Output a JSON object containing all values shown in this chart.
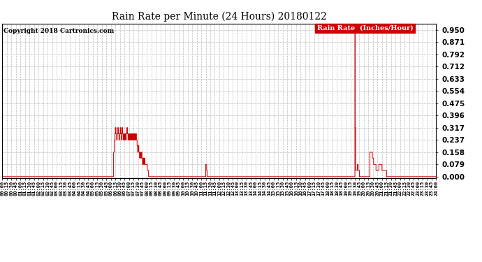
{
  "title": "Rain Rate per Minute (24 Hours) 20180122",
  "copyright": "Copyright 2018 Cartronics.com",
  "legend_label": "Rain Rate  (Inches/Hour)",
  "background_color": "#ffffff",
  "plot_bg_color": "#ffffff",
  "grid_color": "#bbbbbb",
  "line_color": "#cc0000",
  "legend_bg": "#cc0000",
  "legend_text_color": "#ffffff",
  "ylim_min": -0.01,
  "ylim_max": 0.99,
  "yticks": [
    0.0,
    0.079,
    0.158,
    0.237,
    0.317,
    0.396,
    0.475,
    0.554,
    0.633,
    0.712,
    0.792,
    0.871,
    0.95
  ],
  "total_minutes": 1440,
  "xtick_interval": 15,
  "data_x": [],
  "data_y": []
}
